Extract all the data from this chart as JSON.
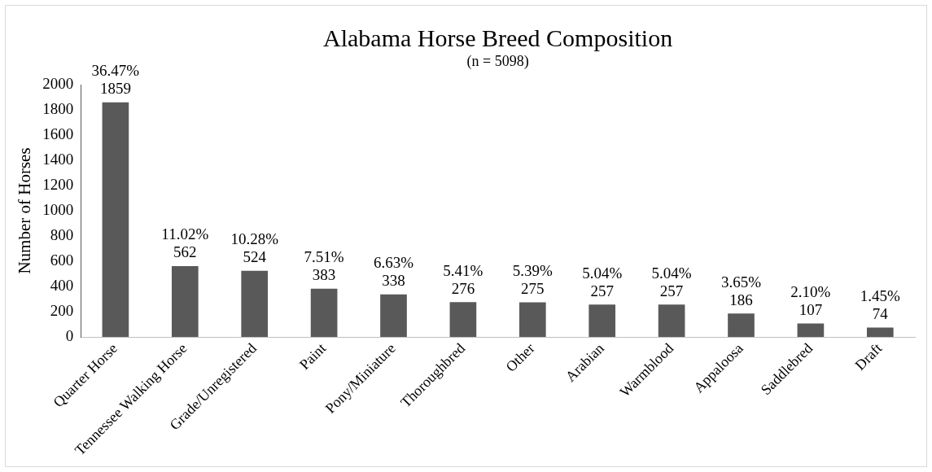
{
  "chart_data": {
    "type": "bar",
    "title": "Alabama Horse Breed Composition",
    "subtitle": "(n = 5098)",
    "ylabel": "Number of Horses",
    "categories": [
      "Quarter Horse",
      "Tennessee Walking Horse",
      "Grade/Unregistered",
      "Paint",
      "Pony/Miniature",
      "Thoroughbred",
      "Other",
      "Arabian",
      "Warmblood",
      "Appaloosa",
      "Saddlebred",
      "Draft"
    ],
    "values": [
      1859,
      562,
      524,
      383,
      338,
      276,
      275,
      257,
      257,
      186,
      107,
      74
    ],
    "value_labels": [
      "36.47%\n1859",
      "11.02%\n562",
      "10.28%\n524",
      "7.51%\n383",
      "6.63%\n338",
      "5.41%\n276",
      "5.39%\n275",
      "5.04%\n257",
      "5.04%\n257",
      "3.65%\n186",
      "2.10%\n107",
      "1.45%\n74"
    ],
    "color": "#595959",
    "ylim": [
      0,
      2000
    ],
    "yticks": [
      0,
      200,
      400,
      600,
      800,
      1000,
      1200,
      1400,
      1600,
      1800,
      2000
    ],
    "grid": false,
    "legend": false
  }
}
